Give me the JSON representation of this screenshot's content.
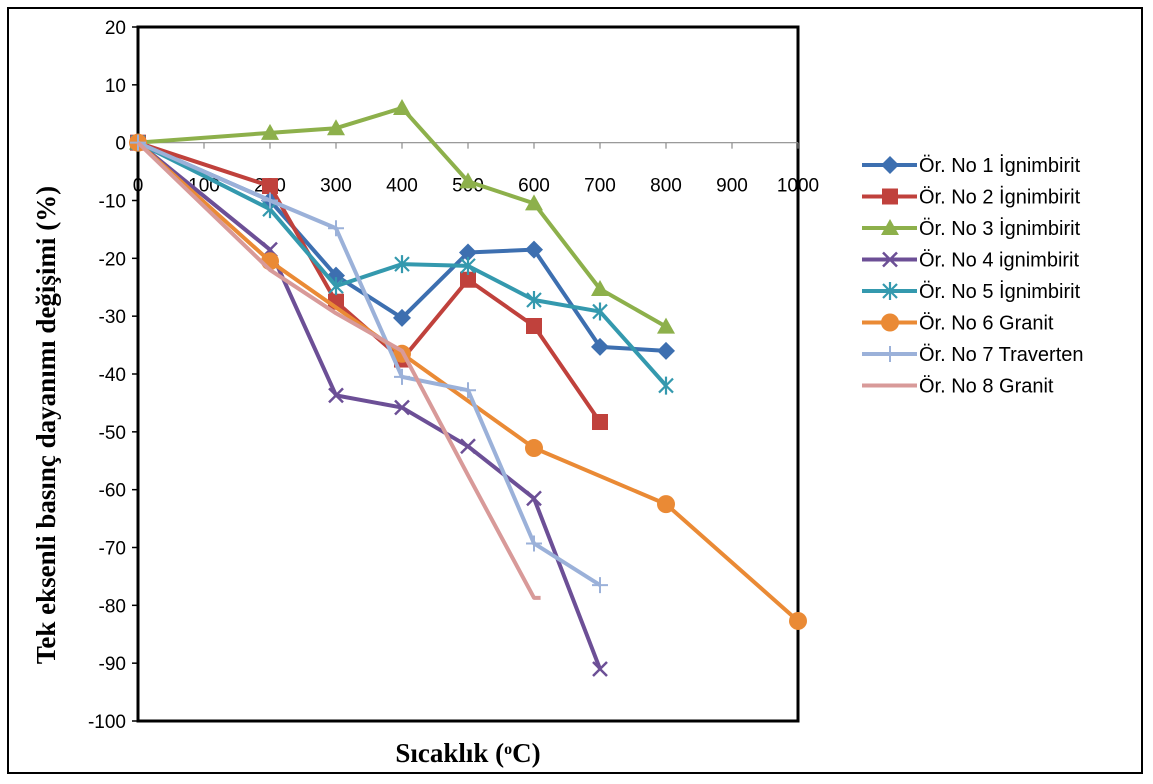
{
  "chart_data": {
    "type": "line",
    "title": "",
    "xlabel": "Sıcaklık (",
    "xlabel_sup": "o",
    "xlabel_tail": "C)",
    "ylabel": "Tek eksenli basınç dayanımı değişimi (%)",
    "xlim": [
      0,
      1000
    ],
    "ylim": [
      -100,
      20
    ],
    "x_ticks": [
      0,
      100,
      200,
      300,
      400,
      500,
      600,
      700,
      800,
      900,
      1000
    ],
    "y_ticks": [
      20,
      10,
      0,
      -10,
      -20,
      -30,
      -40,
      -50,
      -60,
      -70,
      -80,
      -90,
      -100
    ],
    "grid": false,
    "legend_position": "right",
    "series": [
      {
        "name": "Ör. No 1 İgnimbirit",
        "color": "#3d6fb0",
        "marker": "diamond",
        "x": [
          0,
          200,
          300,
          400,
          500,
          600,
          700,
          800
        ],
        "y": [
          0,
          -10,
          -23,
          -30.3,
          -19,
          -18.5,
          -35.3,
          -36
        ]
      },
      {
        "name": "Ör. No 2 İgnimbirit",
        "color": "#c0413c",
        "marker": "square",
        "x": [
          0,
          200,
          300,
          400,
          500,
          600,
          700
        ],
        "y": [
          0,
          -7.5,
          -27.5,
          -37.5,
          -23.7,
          -31.7,
          -48.3
        ]
      },
      {
        "name": "Ör. No 3 İgnimbirit",
        "color": "#8db04b",
        "marker": "triangle",
        "x": [
          0,
          200,
          300,
          400,
          500,
          600,
          700,
          800
        ],
        "y": [
          0,
          1.7,
          2.5,
          6,
          -6.7,
          -10.5,
          -25.3,
          -31.8
        ]
      },
      {
        "name": "Ör. No 4 ignimbirit",
        "color": "#6c4f96",
        "marker": "x",
        "x": [
          0,
          200,
          300,
          400,
          500,
          600,
          700
        ],
        "y": [
          0,
          -18.5,
          -43.7,
          -45.8,
          -52.5,
          -61.5,
          -91
        ]
      },
      {
        "name": "Ör. No 5 İgnimbirit",
        "color": "#3499ae",
        "marker": "star",
        "x": [
          0,
          200,
          300,
          400,
          500,
          600,
          700,
          800
        ],
        "y": [
          0,
          -11.5,
          -24.8,
          -21,
          -21.3,
          -27.2,
          -29.2,
          -42
        ]
      },
      {
        "name": "Ör. No 6 Granit",
        "color": "#ea8a35",
        "marker": "circle",
        "x": [
          0,
          200,
          400,
          600,
          800,
          1000
        ],
        "y": [
          0,
          -20.5,
          -36.5,
          -52.8,
          -62.5,
          -82.7
        ]
      },
      {
        "name": "Ör. No 7 Traverten",
        "color": "#9bb1d9",
        "marker": "plus",
        "x": [
          0,
          200,
          300,
          400,
          500,
          600,
          700
        ],
        "y": [
          0,
          -10,
          -14.8,
          -40.5,
          -42.8,
          -69.3,
          -76.5
        ]
      },
      {
        "name": "Ör. No 8 Granit",
        "color": "#d89a99",
        "marker": "none",
        "x": [
          0,
          200,
          300,
          400,
          500,
          600,
          610
        ],
        "y": [
          0,
          -22,
          -29.5,
          -36,
          -57.5,
          -78.7,
          -78.7
        ]
      }
    ]
  }
}
